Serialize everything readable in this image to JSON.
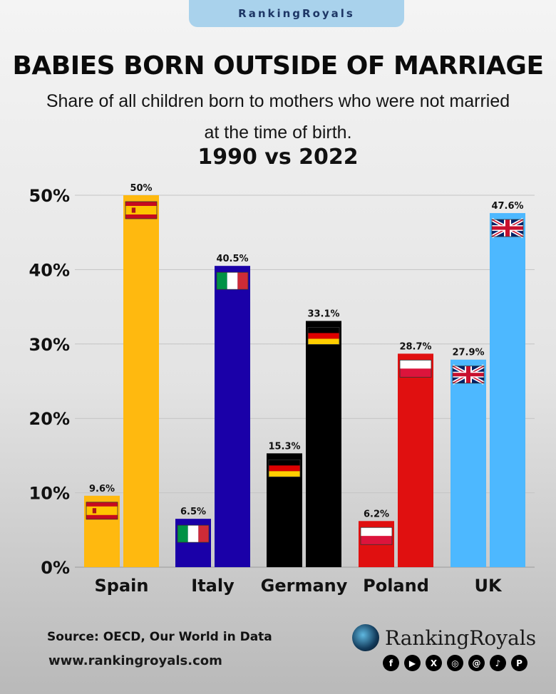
{
  "brand": "RankingRoyals",
  "title": "BABIES BORN OUTSIDE OF MARRIAGE",
  "subtitle": "Share of all children born to mothers who were not married at the time of birth.",
  "period": "1990 vs 2022",
  "footer": {
    "source": "Source: OECD, Our World in Data",
    "website": "www.rankingroyals.com",
    "logo_text": "RankingRoyals",
    "social_icons": [
      "facebook-icon",
      "youtube-icon",
      "x-icon",
      "instagram-icon",
      "threads-icon",
      "tiktok-icon",
      "pinterest-icon"
    ]
  },
  "chart_data": {
    "type": "bar",
    "categories": [
      "Spain",
      "Italy",
      "Germany",
      "Poland",
      "UK"
    ],
    "series": [
      {
        "values": [
          9.6,
          6.5,
          15.3,
          6.2,
          27.9
        ]
      },
      {
        "values": [
          50,
          40.5,
          33.1,
          28.7,
          47.6
        ]
      }
    ],
    "data_labels": [
      [
        "9.6%",
        "6.5%",
        "15.3%",
        "6.2%",
        "27.9%"
      ],
      [
        "50%",
        "40.5%",
        "33.1%",
        "28.7%",
        "47.6%"
      ]
    ],
    "series_years": [
      "1990",
      "2022"
    ],
    "colors": {
      "Spain": "#ffb90f",
      "Italy": "#1a00a8",
      "Germany": "#000000",
      "Poland": "#e01010",
      "UK": "#4db8ff"
    },
    "flags": [
      "spain-flag-icon",
      "italy-flag-icon",
      "germany-flag-icon",
      "poland-flag-icon",
      "uk-flag-icon"
    ],
    "ylim": [
      0,
      50
    ],
    "yticks": [
      "0%",
      "10%",
      "20%",
      "30%",
      "40%",
      "50%"
    ],
    "grid": true,
    "legend": "none"
  }
}
